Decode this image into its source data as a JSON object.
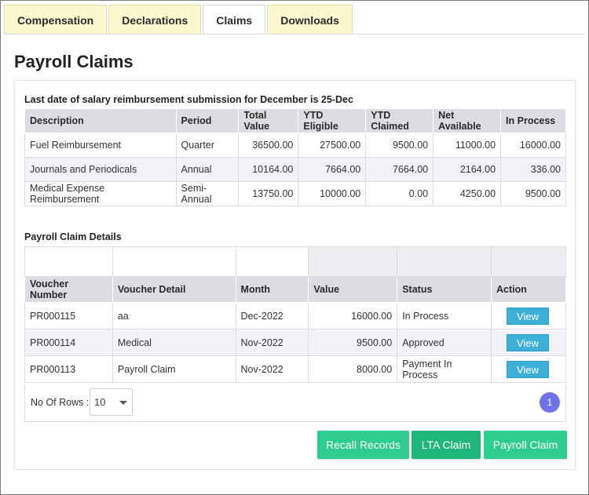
{
  "tabs": [
    {
      "label": "Compensation"
    },
    {
      "label": "Declarations"
    },
    {
      "label": "Claims"
    },
    {
      "label": "Downloads"
    }
  ],
  "page": {
    "title": "Payroll Claims"
  },
  "summary": {
    "notice": "Last date of salary reimbursement submission for December is 25-Dec",
    "headers": [
      "Description",
      "Period",
      "Total Value",
      "YTD Eligible",
      "YTD Claimed",
      "Net Available",
      "In Process"
    ],
    "rows": [
      [
        "Fuel Reimbursement",
        "Quarter",
        "36500.00",
        "27500.00",
        "9500.00",
        "11000.00",
        "16000.00"
      ],
      [
        "Journals and Periodicals",
        "Annual",
        "10164.00",
        "7664.00",
        "7664.00",
        "2164.00",
        "336.00"
      ],
      [
        "Medical Expense Reimbursement",
        "Semi-Annual",
        "13750.00",
        "10000.00",
        "0.00",
        "4250.00",
        "9500.00"
      ]
    ]
  },
  "details": {
    "title": "Payroll Claim Details",
    "headers": [
      "Voucher Number",
      "Voucher Detail",
      "Month",
      "Value",
      "Status",
      "Action"
    ],
    "rows": [
      [
        "PR000115",
        "aa",
        "Dec-2022",
        "16000.00",
        "In Process",
        "View"
      ],
      [
        "PR000114",
        "Medical",
        "Nov-2022",
        "9500.00",
        "Approved",
        "View"
      ],
      [
        "PR000113",
        "Payroll Claim",
        "Nov-2022",
        "8000.00",
        "Payment In Process",
        "View"
      ]
    ],
    "rows_label": "No Of Rows :",
    "rows_value": "10",
    "page_number": "1"
  },
  "buttons": {
    "recall": "Recall Records",
    "lta": "LTA Claim",
    "payroll": "Payroll Claim"
  },
  "colors": {
    "accent_green": "#2ecc8f",
    "view_blue": "#3eb0d8",
    "page_badge": "#6f71e8",
    "tab_bg": "#fbf8d0"
  }
}
